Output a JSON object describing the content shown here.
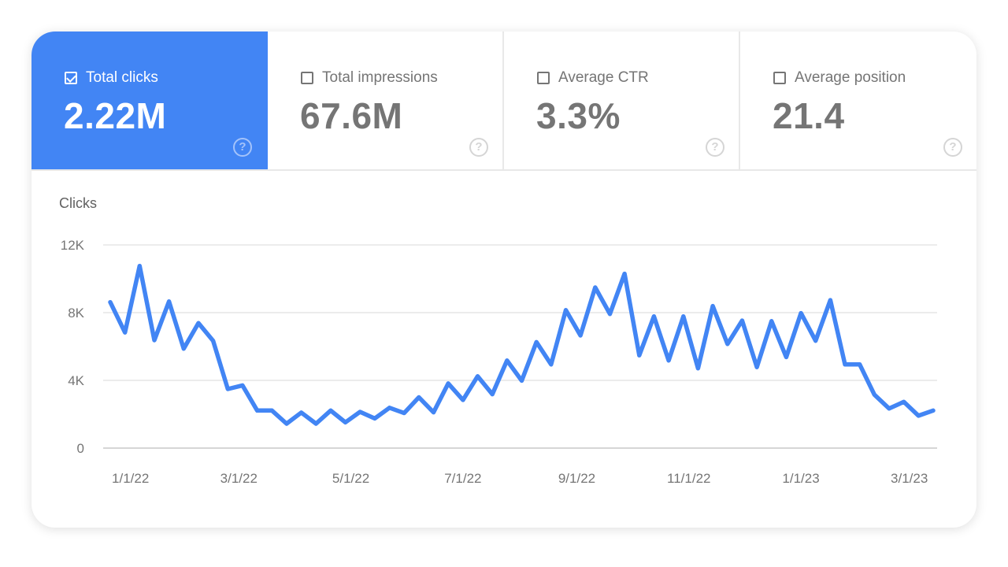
{
  "metrics": [
    {
      "label": "Total clicks",
      "value": "2.22M",
      "checked": true,
      "help_icon": "help-circle-icon"
    },
    {
      "label": "Total impressions",
      "value": "67.6M",
      "checked": false,
      "help_icon": "help-circle-icon"
    },
    {
      "label": "Average CTR",
      "value": "3.3%",
      "checked": false,
      "help_icon": "help-circle-icon"
    },
    {
      "label": "Average position",
      "value": "21.4",
      "checked": false,
      "help_icon": "help-circle-icon"
    }
  ],
  "colors": {
    "accent": "#4285f4",
    "line": "#4285f4",
    "grid": "#e6e6e6",
    "text": "#757575"
  },
  "help_glyph": "?",
  "chart_data": {
    "type": "line",
    "ylabel": "Clicks",
    "ylim": [
      0,
      12000
    ],
    "yticks": [
      0,
      4000,
      8000,
      12000
    ],
    "ytick_labels": [
      "0",
      "4K",
      "8K",
      "12K"
    ],
    "xtick_dates": [
      "2022-01-01",
      "2022-03-01",
      "2022-05-01",
      "2022-07-01",
      "2022-09-01",
      "2022-11-01",
      "2023-01-01",
      "2023-03-01"
    ],
    "xtick_labels": [
      "1/1/22",
      "3/1/22",
      "5/1/22",
      "7/1/22",
      "9/1/22",
      "11/1/22",
      "1/1/23",
      "3/1/23"
    ],
    "grid": true,
    "x": [
      "2021-12-21",
      "2021-12-29",
      "2022-01-06",
      "2022-01-14",
      "2022-01-22",
      "2022-01-30",
      "2022-02-07",
      "2022-02-15",
      "2022-02-23",
      "2022-03-03",
      "2022-03-11",
      "2022-03-19",
      "2022-03-27",
      "2022-04-04",
      "2022-04-12",
      "2022-04-20",
      "2022-04-28",
      "2022-05-06",
      "2022-05-14",
      "2022-05-22",
      "2022-05-30",
      "2022-06-07",
      "2022-06-15",
      "2022-06-23",
      "2022-07-01",
      "2022-07-09",
      "2022-07-17",
      "2022-07-25",
      "2022-08-02",
      "2022-08-10",
      "2022-08-18",
      "2022-08-26",
      "2022-09-03",
      "2022-09-11",
      "2022-09-19",
      "2022-09-27",
      "2022-10-05",
      "2022-10-13",
      "2022-10-21",
      "2022-10-29",
      "2022-11-06",
      "2022-11-14",
      "2022-11-22",
      "2022-11-30",
      "2022-12-08",
      "2022-12-16",
      "2022-12-24",
      "2023-01-01",
      "2023-01-09",
      "2023-01-17",
      "2023-01-25",
      "2023-02-02",
      "2023-02-10",
      "2023-02-18",
      "2023-02-26",
      "2023-03-06",
      "2023-03-14"
    ],
    "series": [
      {
        "values": [
          8620,
          6830,
          10760,
          6370,
          8660,
          5870,
          7380,
          6340,
          3490,
          3700,
          2220,
          2220,
          1440,
          2100,
          1440,
          2220,
          1520,
          2140,
          1750,
          2380,
          2070,
          3000,
          2110,
          3820,
          2840,
          4240,
          3180,
          5170,
          3980,
          6260,
          4940,
          8150,
          6650,
          9490,
          7920,
          10300,
          5480,
          7780,
          5170,
          7780,
          4710,
          8390,
          6150,
          7530,
          4780,
          7500,
          5370,
          7970,
          6340,
          8740,
          4940,
          4940,
          3150,
          2340,
          2730,
          1910,
          2220
        ]
      }
    ]
  }
}
